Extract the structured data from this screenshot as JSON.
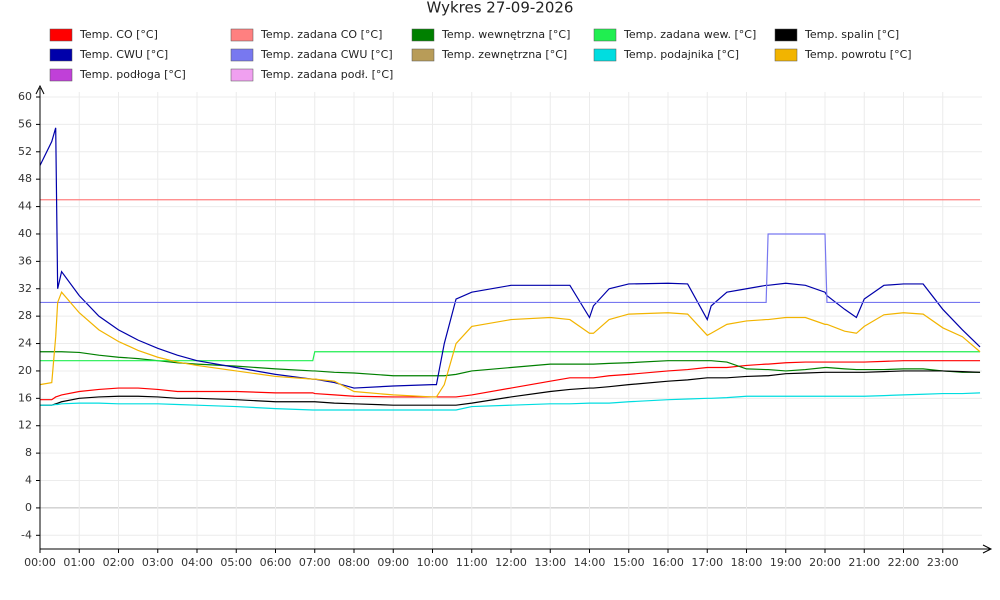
{
  "chart_data": {
    "type": "line",
    "title": "Wykres 27-09-2026",
    "x": [
      0,
      0.3,
      0.4,
      0.45,
      0.55,
      1,
      1.5,
      2,
      2.5,
      3,
      3.5,
      4,
      5,
      6,
      6.95,
      7,
      7.5,
      8,
      9,
      10,
      10.1,
      10.3,
      10.6,
      11,
      12,
      13,
      13.5,
      14,
      14.1,
      14.5,
      15,
      16,
      16.5,
      17,
      17.1,
      17.5,
      18,
      18.5,
      18.55,
      19,
      19.5,
      20,
      20.05,
      20.5,
      20.8,
      21,
      21.5,
      22,
      22.5,
      23,
      23.5,
      23.95
    ],
    "xlim": [
      0,
      24
    ],
    "xticks": [
      {
        "value": 0,
        "label": "00:00"
      },
      {
        "value": 1,
        "label": "01:00"
      },
      {
        "value": 2,
        "label": "02:00"
      },
      {
        "value": 3,
        "label": "03:00"
      },
      {
        "value": 4,
        "label": "04:00"
      },
      {
        "value": 5,
        "label": "05:00"
      },
      {
        "value": 6,
        "label": "06:00"
      },
      {
        "value": 7,
        "label": "07:00"
      },
      {
        "value": 8,
        "label": "08:00"
      },
      {
        "value": 9,
        "label": "09:00"
      },
      {
        "value": 10,
        "label": "10:00"
      },
      {
        "value": 11,
        "label": "11:00"
      },
      {
        "value": 12,
        "label": "12:00"
      },
      {
        "value": 13,
        "label": "13:00"
      },
      {
        "value": 14,
        "label": "14:00"
      },
      {
        "value": 15,
        "label": "15:00"
      },
      {
        "value": 16,
        "label": "16:00"
      },
      {
        "value": 17,
        "label": "17:00"
      },
      {
        "value": 18,
        "label": "18:00"
      },
      {
        "value": 19,
        "label": "19:00"
      },
      {
        "value": 20,
        "label": "20:00"
      },
      {
        "value": 21,
        "label": "21:00"
      },
      {
        "value": 22,
        "label": "22:00"
      },
      {
        "value": 23,
        "label": "23:00"
      }
    ],
    "ylim": [
      -6,
      60
    ],
    "yticks": [
      -4,
      0,
      4,
      8,
      12,
      16,
      20,
      24,
      28,
      32,
      36,
      40,
      44,
      48,
      52,
      56,
      60
    ],
    "grid": true,
    "series": [
      {
        "name": "Temp. CO [°C]",
        "color": "#ff0000",
        "values": [
          15.8,
          15.8,
          16.2,
          16.3,
          16.5,
          17,
          17.3,
          17.5,
          17.5,
          17.3,
          17,
          17,
          17,
          16.8,
          16.8,
          16.7,
          16.5,
          16.3,
          16.2,
          16.2,
          16.2,
          16.2,
          16.2,
          16.5,
          17.5,
          18.5,
          19,
          19,
          19,
          19.3,
          19.5,
          20,
          20.2,
          20.5,
          20.5,
          20.5,
          20.8,
          21,
          21,
          21.2,
          21.3,
          21.3,
          21.3,
          21.3,
          21.3,
          21.3,
          21.4,
          21.5,
          21.5,
          21.5,
          21.5,
          21.5
        ]
      },
      {
        "name": "Temp. zadana CO [°C]",
        "color": "#ff8080",
        "values": [
          45,
          45,
          45,
          45,
          45,
          45,
          45,
          45,
          45,
          45,
          45,
          45,
          45,
          45,
          45,
          45,
          45,
          45,
          45,
          45,
          45,
          45,
          45,
          45,
          45,
          45,
          45,
          45,
          45,
          45,
          45,
          45,
          45,
          45,
          45,
          45,
          45,
          45,
          45,
          45,
          45,
          45,
          45,
          45,
          45,
          45,
          45,
          45,
          45,
          45,
          45,
          45
        ]
      },
      {
        "name": "Temp. wewnętrzna [°C]",
        "color": "#008000",
        "values": [
          22.8,
          22.8,
          22.8,
          22.8,
          22.8,
          22.7,
          22.3,
          22,
          21.8,
          21.5,
          21.2,
          21,
          20.7,
          20.3,
          20,
          20,
          19.8,
          19.7,
          19.3,
          19.3,
          19.3,
          19.3,
          19.5,
          20,
          20.5,
          21,
          21,
          21,
          21,
          21.1,
          21.2,
          21.5,
          21.5,
          21.5,
          21.5,
          21.3,
          20.3,
          20.2,
          20.2,
          20,
          20.2,
          20.5,
          20.5,
          20.3,
          20.2,
          20.2,
          20.2,
          20.3,
          20.3,
          20,
          19.8,
          19.8
        ]
      },
      {
        "name": "Temp. zadana wew. [°C]",
        "color": "#20ee50",
        "values": [
          21.5,
          21.5,
          21.5,
          21.5,
          21.5,
          21.5,
          21.5,
          21.5,
          21.5,
          21.5,
          21.5,
          21.5,
          21.5,
          21.5,
          21.5,
          22.8,
          22.8,
          22.8,
          22.8,
          22.8,
          22.8,
          22.8,
          22.8,
          22.8,
          22.8,
          22.8,
          22.8,
          22.8,
          22.8,
          22.8,
          22.8,
          22.8,
          22.8,
          22.8,
          22.8,
          22.8,
          22.8,
          22.8,
          22.8,
          22.8,
          22.8,
          22.8,
          22.8,
          22.8,
          22.8,
          22.8,
          22.8,
          22.8,
          22.8,
          22.8,
          22.8,
          22.8
        ]
      },
      {
        "name": "Temp. spalin [°C]",
        "color": "#000000",
        "values": [
          15,
          15,
          15.2,
          15.3,
          15.5,
          16,
          16.2,
          16.3,
          16.3,
          16.2,
          16,
          16,
          15.8,
          15.5,
          15.5,
          15.5,
          15.3,
          15.2,
          15,
          15,
          15,
          15,
          15,
          15.3,
          16.2,
          17,
          17.3,
          17.5,
          17.5,
          17.7,
          18,
          18.5,
          18.7,
          19,
          19,
          19,
          19.2,
          19.3,
          19.3,
          19.6,
          19.7,
          19.8,
          19.8,
          19.8,
          19.8,
          19.8,
          19.9,
          20,
          20,
          20,
          19.9,
          19.8
        ]
      },
      {
        "name": "Temp. CWU [°C]",
        "color": "#0000aa",
        "values": [
          50,
          53.5,
          55.5,
          32,
          34.5,
          31,
          28,
          26,
          24.5,
          23.3,
          22.3,
          21.5,
          20.5,
          19.5,
          18.8,
          18.8,
          18.3,
          17.5,
          17.8,
          18,
          18,
          24,
          30.5,
          31.5,
          32.5,
          32.5,
          32.5,
          27.8,
          29.5,
          32,
          32.7,
          32.8,
          32.7,
          27.5,
          29.5,
          31.5,
          32,
          32.5,
          32.5,
          32.8,
          32.5,
          31.5,
          31,
          29,
          27.8,
          30.5,
          32.5,
          32.7,
          32.7,
          29,
          26,
          23.5
        ]
      },
      {
        "name": "Temp. zadana CWU [°C]",
        "color": "#7878f0",
        "values": [
          30,
          30,
          30,
          30,
          30,
          30,
          30,
          30,
          30,
          30,
          30,
          30,
          30,
          30,
          30,
          30,
          30,
          30,
          30,
          30,
          30,
          30,
          30,
          30,
          30,
          30,
          30,
          30,
          30,
          30,
          30,
          30,
          30,
          30,
          30,
          30,
          30,
          30,
          40,
          40,
          40,
          40,
          30,
          30,
          30,
          30,
          30,
          30,
          30,
          30,
          30,
          30
        ]
      },
      {
        "name": "Temp. zewnętrzna [°C]",
        "color": "#b89c58",
        "values": [
          null,
          null,
          null,
          null,
          null,
          null,
          null,
          null,
          null,
          null,
          null,
          null,
          null,
          null,
          null,
          null,
          null,
          null,
          null,
          null,
          null,
          null,
          null,
          null,
          null,
          null,
          null,
          null,
          null,
          null,
          null,
          null,
          null,
          null,
          null,
          null,
          null,
          null,
          null,
          null,
          null,
          null,
          null,
          null,
          null,
          null,
          null,
          null,
          null,
          null,
          null,
          null
        ]
      },
      {
        "name": "Temp. podajnika [°C]",
        "color": "#00dde0",
        "values": [
          15,
          15,
          15.1,
          15.1,
          15.2,
          15.3,
          15.3,
          15.2,
          15.2,
          15.2,
          15.1,
          15,
          14.8,
          14.5,
          14.3,
          14.3,
          14.3,
          14.3,
          14.3,
          14.3,
          14.3,
          14.3,
          14.3,
          14.8,
          15,
          15.2,
          15.2,
          15.3,
          15.3,
          15.3,
          15.5,
          15.8,
          15.9,
          16,
          16,
          16.1,
          16.3,
          16.3,
          16.3,
          16.3,
          16.3,
          16.3,
          16.3,
          16.3,
          16.3,
          16.3,
          16.4,
          16.5,
          16.6,
          16.7,
          16.7,
          16.8
        ]
      },
      {
        "name": "Temp. powrotu [°C]",
        "color": "#f2b400",
        "values": [
          18,
          18.3,
          25,
          30,
          31.5,
          28.5,
          26,
          24.3,
          23,
          22,
          21.3,
          20.8,
          20,
          19.2,
          18.8,
          18.8,
          18.5,
          17,
          16.5,
          16.2,
          16.2,
          18,
          24,
          26.5,
          27.5,
          27.8,
          27.5,
          25.5,
          25.5,
          27.5,
          28.3,
          28.5,
          28.3,
          25.2,
          25.5,
          26.8,
          27.3,
          27.5,
          27.5,
          27.8,
          27.8,
          26.8,
          26.8,
          25.8,
          25.5,
          26.5,
          28.2,
          28.5,
          28.3,
          26.3,
          25,
          22.8
        ]
      },
      {
        "name": "Temp. podłoga [°C]",
        "color": "#c040d8",
        "values": [
          null,
          null,
          null,
          null,
          null,
          null,
          null,
          null,
          null,
          null,
          null,
          null,
          null,
          null,
          null,
          null,
          null,
          null,
          null,
          null,
          null,
          null,
          null,
          null,
          null,
          null,
          null,
          null,
          null,
          null,
          null,
          null,
          null,
          null,
          null,
          null,
          null,
          null,
          null,
          null,
          null,
          null,
          null,
          null,
          null,
          null,
          null,
          null,
          null,
          null,
          null,
          null
        ]
      },
      {
        "name": "Temp. zadana podł. [°C]",
        "color": "#f0a0f0",
        "values": [
          null,
          null,
          null,
          null,
          null,
          null,
          null,
          null,
          null,
          null,
          null,
          null,
          null,
          null,
          null,
          null,
          null,
          null,
          null,
          null,
          null,
          null,
          null,
          null,
          null,
          null,
          null,
          null,
          null,
          null,
          null,
          null,
          null,
          null,
          null,
          null,
          null,
          null,
          null,
          null,
          null,
          null,
          null,
          null,
          null,
          null,
          null,
          null,
          null,
          null,
          null,
          null
        ]
      }
    ]
  }
}
